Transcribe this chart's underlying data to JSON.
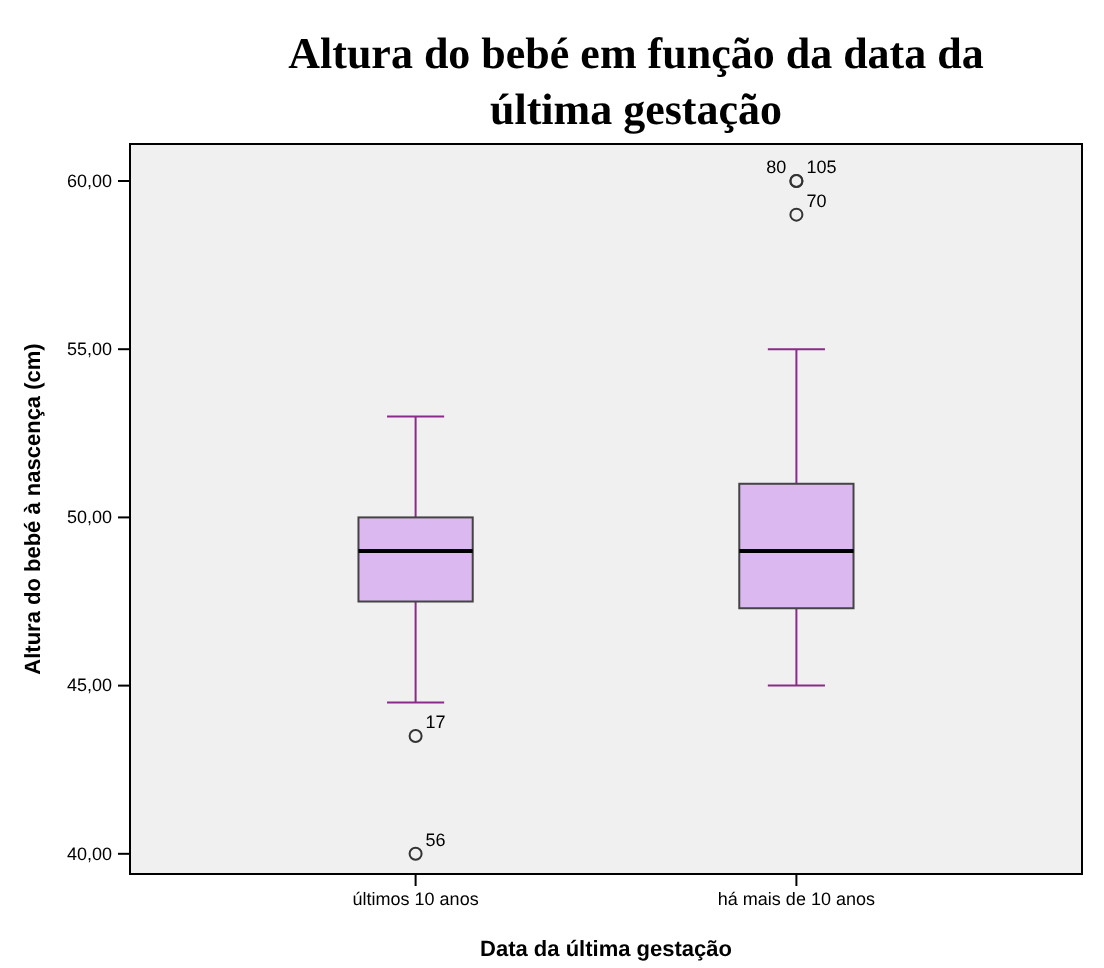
{
  "chart_data": {
    "type": "box",
    "title": "Altura do bebé em função da data da última gestação",
    "xlabel": "Data da última gestação",
    "ylabel": "Altura do bebé à nascença (cm)",
    "categories": [
      "últimos 10 anos",
      "há mais de 10 anos"
    ],
    "series": [
      {
        "color": "#dcb8f0",
        "boxes": [
          {
            "low": 44.5,
            "q1": 47.5,
            "median": 49,
            "q3": 50,
            "high": 53,
            "outliers": [
              43.5,
              40
            ]
          },
          {
            "low": 45,
            "q1": 47.3,
            "median": 49,
            "q3": 51,
            "high": 55,
            "outliers": [
              60,
              60,
              59
            ]
          }
        ]
      }
    ],
    "ylim": [
      39.4,
      61.1
    ],
    "yticks": [
      {
        "value": 40,
        "label": "40,00"
      },
      {
        "value": 45,
        "label": "45,00"
      },
      {
        "value": 50,
        "label": "50,00"
      },
      {
        "value": 55,
        "label": "55,00"
      },
      {
        "value": 60,
        "label": "60,00"
      }
    ],
    "grid": false,
    "annotations": [
      "17",
      "56",
      "80",
      "105",
      "70"
    ]
  }
}
